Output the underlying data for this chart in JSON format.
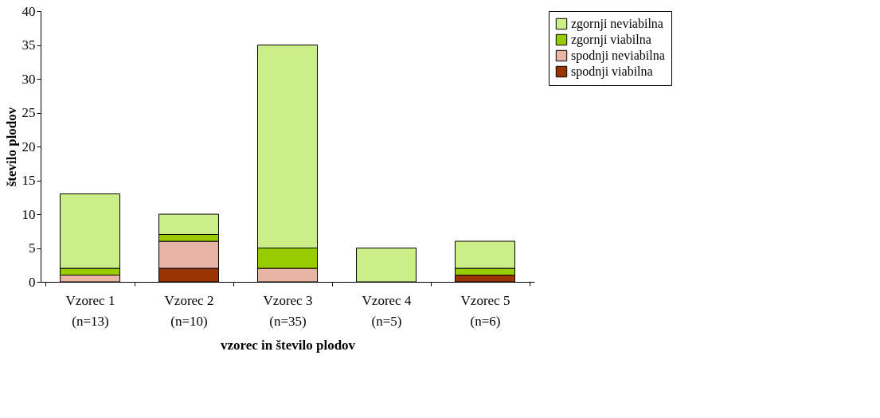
{
  "chart_data": {
    "type": "bar",
    "stacked": true,
    "xlabel": "vzorec in število plodov",
    "ylabel": "število plodov",
    "categories": [
      "Vzorec 1\n(n=13)",
      "Vzorec 2\n(n=10)",
      "Vzorec 3\n(n=35)",
      "Vzorec 4\n(n=5)",
      "Vzorec 5\n(n=6)"
    ],
    "series": [
      {
        "name": "spodnji viabilna",
        "color": "#993300",
        "values": [
          0,
          2,
          0,
          0,
          1
        ]
      },
      {
        "name": "spodnji neviabilna",
        "color": "#e8b4a4",
        "values": [
          1,
          4,
          2,
          0,
          0
        ]
      },
      {
        "name": "zgornji viabilna",
        "color": "#99cc00",
        "values": [
          1,
          1,
          3,
          0,
          1
        ]
      },
      {
        "name": "zgornji neviabilna",
        "color": "#ccee88",
        "values": [
          11,
          3,
          30,
          5,
          4
        ]
      }
    ],
    "ylim": [
      0,
      40
    ],
    "yticks": [
      0,
      5,
      10,
      15,
      20,
      25,
      30,
      35,
      40
    ],
    "grid": false,
    "legend": "right"
  }
}
